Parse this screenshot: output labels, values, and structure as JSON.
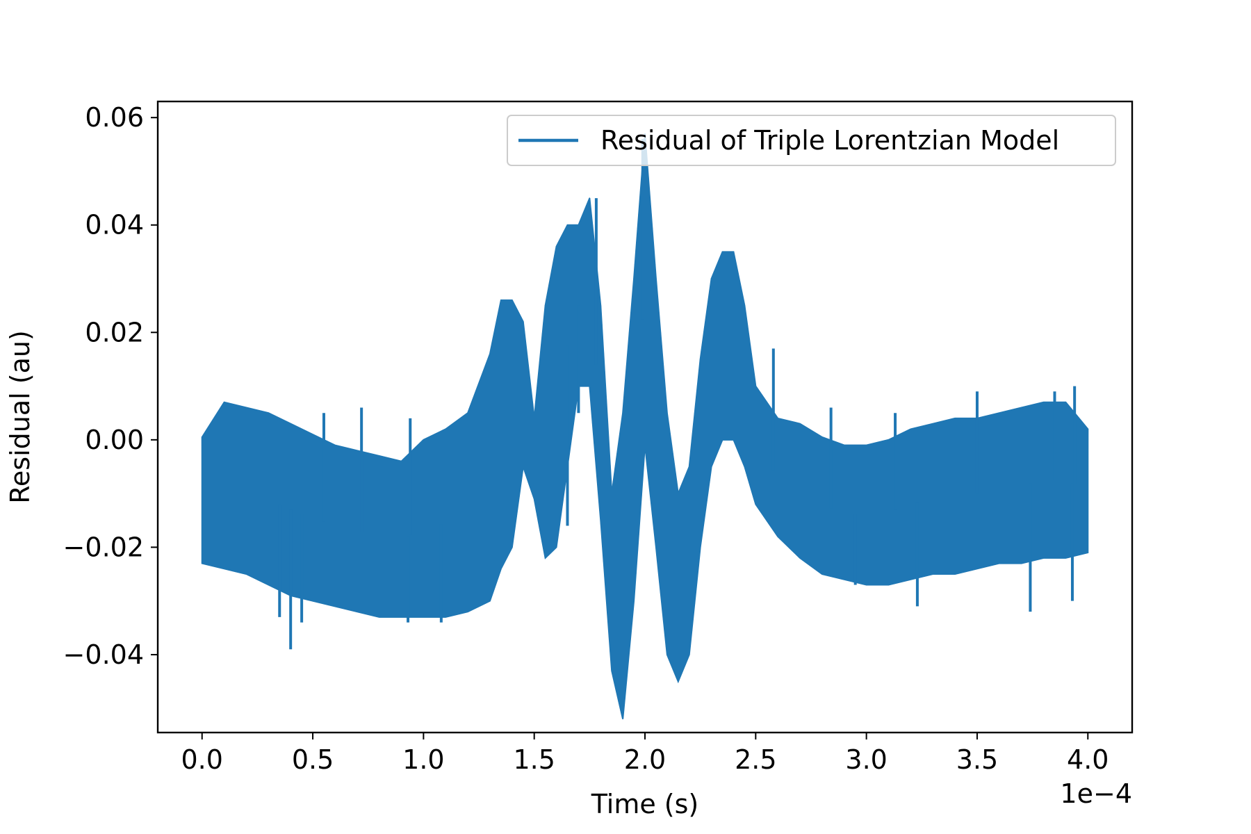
{
  "chart_data": {
    "type": "line",
    "xlabel": "Time (s)",
    "ylabel": "Residual (au)",
    "x_offset_label": "1e−4",
    "xlim": [
      -2e-05,
      0.00042
    ],
    "ylim": [
      -0.0545,
      0.063
    ],
    "x_ticks": [
      0.0,
      5e-05,
      0.0001,
      0.00015,
      0.0002,
      0.00025,
      0.0003,
      0.00035,
      0.0004
    ],
    "x_tick_labels": [
      "0.0",
      "0.5",
      "1.0",
      "1.5",
      "2.0",
      "2.5",
      "3.0",
      "3.5",
      "4.0"
    ],
    "y_ticks": [
      -0.04,
      -0.02,
      0.0,
      0.02,
      0.04,
      0.06
    ],
    "y_tick_labels": [
      "−0.04",
      "−0.02",
      "0.00",
      "0.02",
      "0.04",
      "0.06"
    ],
    "grid": false,
    "legend_position": "top-right",
    "series": [
      {
        "name": "Residual of Triple Lorentzian Model",
        "color": "#1f77b4",
        "envelope": {
          "x": [
            0.0,
            1e-05,
            2e-05,
            3e-05,
            4e-05,
            5e-05,
            6e-05,
            7e-05,
            8e-05,
            9e-05,
            0.0001,
            0.00011,
            0.00012,
            0.00013,
            0.000135,
            0.00014,
            0.000145,
            0.00015,
            0.000155,
            0.00016,
            0.000165,
            0.00017,
            0.000175,
            0.00018,
            0.000185,
            0.00019,
            0.000195,
            0.0002,
            0.000205,
            0.00021,
            0.000215,
            0.00022,
            0.000225,
            0.00023,
            0.000235,
            0.00024,
            0.000245,
            0.00025,
            0.00026,
            0.00027,
            0.00028,
            0.00029,
            0.0003,
            0.00031,
            0.00032,
            0.00033,
            0.00034,
            0.00035,
            0.00036,
            0.00037,
            0.00038,
            0.00039,
            0.0004
          ],
          "upper": [
            0.0005,
            0.007,
            0.006,
            0.005,
            0.003,
            0.001,
            -0.001,
            -0.002,
            -0.003,
            -0.004,
            0.0,
            0.002,
            0.005,
            0.016,
            0.026,
            0.026,
            0.022,
            0.004,
            0.025,
            0.036,
            0.04,
            0.04,
            0.045,
            0.025,
            -0.01,
            0.005,
            0.03,
            0.057,
            0.03,
            0.005,
            -0.01,
            -0.005,
            0.015,
            0.03,
            0.035,
            0.035,
            0.025,
            0.01,
            0.004,
            0.003,
            0.0005,
            -0.001,
            -0.001,
            0.0,
            0.002,
            0.003,
            0.004,
            0.004,
            0.005,
            0.006,
            0.007,
            0.007,
            0.002
          ],
          "lower": [
            -0.023,
            -0.024,
            -0.025,
            -0.027,
            -0.029,
            -0.03,
            -0.031,
            -0.032,
            -0.033,
            -0.033,
            -0.033,
            -0.033,
            -0.032,
            -0.03,
            -0.024,
            -0.02,
            -0.005,
            -0.011,
            -0.022,
            -0.02,
            -0.005,
            0.01,
            0.01,
            -0.015,
            -0.043,
            -0.052,
            -0.03,
            -0.001,
            -0.02,
            -0.04,
            -0.045,
            -0.04,
            -0.02,
            -0.005,
            0.0,
            0.0,
            -0.005,
            -0.012,
            -0.018,
            -0.022,
            -0.025,
            -0.026,
            -0.027,
            -0.027,
            -0.026,
            -0.025,
            -0.025,
            -0.024,
            -0.023,
            -0.023,
            -0.022,
            -0.022,
            -0.021
          ]
        },
        "spikes": [
          {
            "x": 4e-05,
            "y": -0.039
          },
          {
            "x": 3.5e-05,
            "y": -0.033
          },
          {
            "x": 4.5e-05,
            "y": -0.034
          },
          {
            "x": 5.5e-05,
            "y": 0.005
          },
          {
            "x": 7.2e-05,
            "y": 0.006
          },
          {
            "x": 9.3e-05,
            "y": -0.034
          },
          {
            "x": 9.4e-05,
            "y": 0.004
          },
          {
            "x": 0.000108,
            "y": -0.034
          },
          {
            "x": 0.000165,
            "y": -0.016
          },
          {
            "x": 0.00017,
            "y": 0.005
          },
          {
            "x": 0.000178,
            "y": 0.045
          },
          {
            "x": 0.000199,
            "y": 0.056
          },
          {
            "x": 0.000258,
            "y": 0.017
          },
          {
            "x": 0.000284,
            "y": 0.006
          },
          {
            "x": 0.000295,
            "y": -0.027
          },
          {
            "x": 0.000313,
            "y": 0.005
          },
          {
            "x": 0.000323,
            "y": -0.031
          },
          {
            "x": 0.00035,
            "y": 0.009
          },
          {
            "x": 0.000374,
            "y": -0.032
          },
          {
            "x": 0.000385,
            "y": 0.009
          },
          {
            "x": 0.000394,
            "y": 0.01
          },
          {
            "x": 0.000393,
            "y": -0.03
          }
        ]
      }
    ]
  }
}
